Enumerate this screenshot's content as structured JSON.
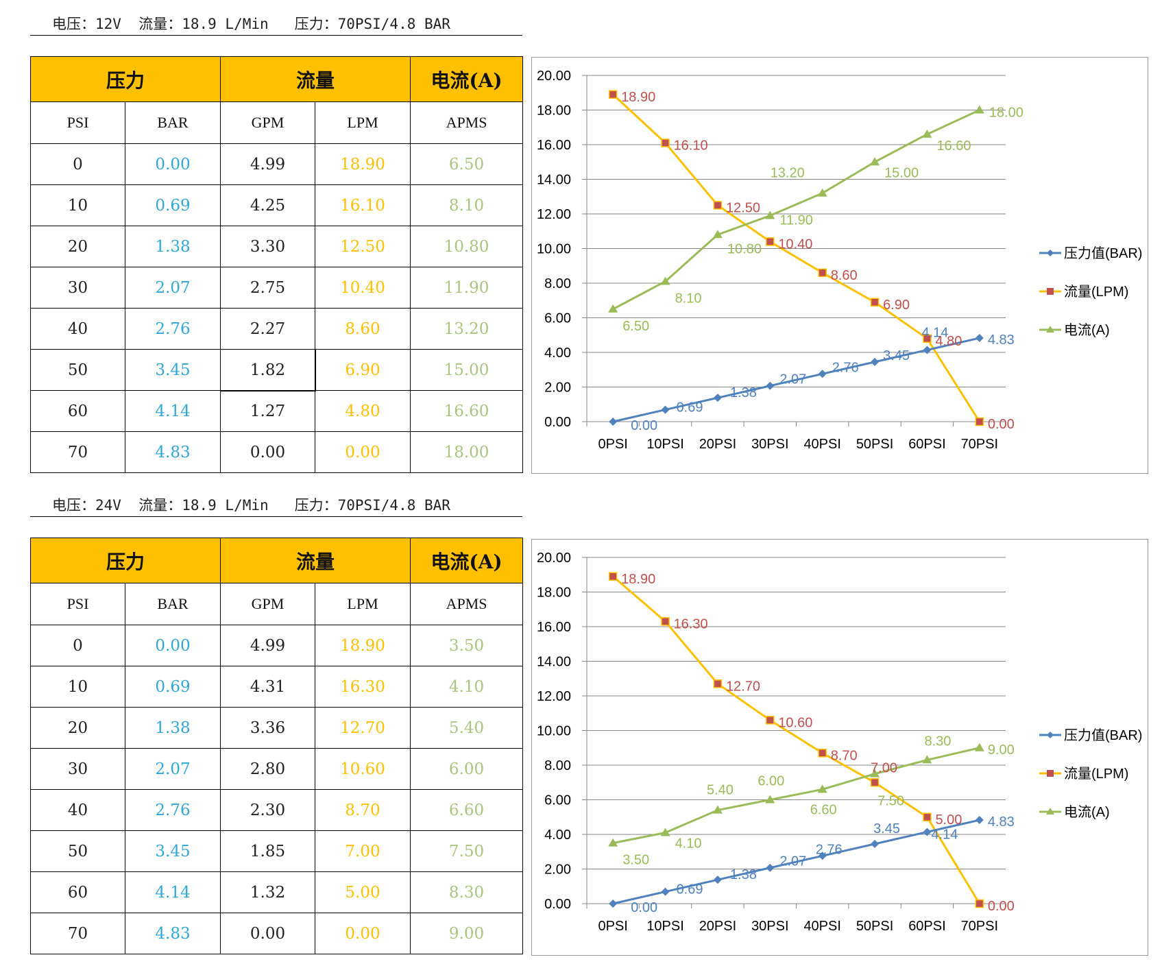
{
  "sections": [
    {
      "spec": "电压：12V  流量：18.9 L/Min   压力：70PSI/4.8 BAR",
      "table": {
        "group_headers": [
          "压力",
          "流量",
          "电流(A)"
        ],
        "sub_headers": [
          "PSI",
          "BAR",
          "GPM",
          "LPM",
          "APMS"
        ],
        "rows": [
          [
            "0",
            "0.00",
            "4.99",
            "18.90",
            "6.50"
          ],
          [
            "10",
            "0.69",
            "4.25",
            "16.10",
            "8.10"
          ],
          [
            "20",
            "1.38",
            "3.30",
            "12.50",
            "10.80"
          ],
          [
            "30",
            "2.07",
            "2.75",
            "10.40",
            "11.90"
          ],
          [
            "40",
            "2.76",
            "2.27",
            "8.60",
            "13.20"
          ],
          [
            "50",
            "3.45",
            "1.82",
            "6.90",
            "15.00"
          ],
          [
            "60",
            "4.14",
            "1.27",
            "4.80",
            "16.60"
          ],
          [
            "70",
            "4.83",
            "0.00",
            "0.00",
            "18.00"
          ]
        ]
      }
    },
    {
      "spec": "电压：24V  流量：18.9 L/Min   压力：70PSI/4.8 BAR",
      "table": {
        "group_headers": [
          "压力",
          "流量",
          "电流(A)"
        ],
        "sub_headers": [
          "PSI",
          "BAR",
          "GPM",
          "LPM",
          "APMS"
        ],
        "rows": [
          [
            "0",
            "0.00",
            "4.99",
            "18.90",
            "3.50"
          ],
          [
            "10",
            "0.69",
            "4.31",
            "16.30",
            "4.10"
          ],
          [
            "20",
            "1.38",
            "3.36",
            "12.70",
            "5.40"
          ],
          [
            "30",
            "2.07",
            "2.80",
            "10.60",
            "6.00"
          ],
          [
            "40",
            "2.76",
            "2.30",
            "8.70",
            "6.60"
          ],
          [
            "50",
            "3.45",
            "1.85",
            "7.00",
            "7.50"
          ],
          [
            "60",
            "4.14",
            "1.32",
            "5.00",
            "8.30"
          ],
          [
            "70",
            "4.83",
            "0.00",
            "0.00",
            "9.00"
          ]
        ]
      }
    }
  ],
  "chart_data": [
    {
      "type": "line",
      "title": "",
      "xlabel": "",
      "ylabel": "",
      "categories": [
        "0PSI",
        "10PSI",
        "20PSI",
        "30PSI",
        "40PSI",
        "50PSI",
        "60PSI",
        "70PSI"
      ],
      "ylim": [
        0,
        20
      ],
      "yticks": [
        "0.00",
        "2.00",
        "4.00",
        "6.00",
        "8.00",
        "10.00",
        "12.00",
        "14.00",
        "16.00",
        "18.00",
        "20.00"
      ],
      "grid": true,
      "legend_position": "right",
      "series": [
        {
          "name": "压力值(BAR)",
          "color": "#4f81bd",
          "label_color": "#4f81bd",
          "marker": "diamond",
          "values": [
            0.0,
            0.69,
            1.38,
            2.07,
            2.76,
            3.45,
            4.14,
            4.83
          ]
        },
        {
          "name": "流量(LPM)",
          "color": "#ffc000",
          "label_color": "#c0504d",
          "marker": "square",
          "marker_color": "#c0504d",
          "values": [
            18.9,
            16.1,
            12.5,
            10.4,
            8.6,
            6.9,
            4.8,
            0.0
          ]
        },
        {
          "name": "电流(A)",
          "color": "#9bbb59",
          "label_color": "#9bbb59",
          "marker": "triangle",
          "values": [
            6.5,
            8.1,
            10.8,
            11.9,
            13.2,
            15.0,
            16.6,
            18.0
          ]
        }
      ]
    },
    {
      "type": "line",
      "title": "",
      "xlabel": "",
      "ylabel": "",
      "categories": [
        "0PSI",
        "10PSI",
        "20PSI",
        "30PSI",
        "40PSI",
        "50PSI",
        "60PSI",
        "70PSI"
      ],
      "ylim": [
        0,
        20
      ],
      "yticks": [
        "0.00",
        "2.00",
        "4.00",
        "6.00",
        "8.00",
        "10.00",
        "12.00",
        "14.00",
        "16.00",
        "18.00",
        "20.00"
      ],
      "grid": true,
      "legend_position": "right",
      "series": [
        {
          "name": "压力值(BAR)",
          "color": "#4f81bd",
          "label_color": "#4f81bd",
          "marker": "diamond",
          "values": [
            0.0,
            0.69,
            1.38,
            2.07,
            2.76,
            3.45,
            4.14,
            4.83
          ]
        },
        {
          "name": "流量(LPM)",
          "color": "#ffc000",
          "label_color": "#c0504d",
          "marker": "square",
          "marker_color": "#c0504d",
          "values": [
            18.9,
            16.3,
            12.7,
            10.6,
            8.7,
            7.0,
            5.0,
            0.0
          ]
        },
        {
          "name": "电流(A)",
          "color": "#9bbb59",
          "label_color": "#9bbb59",
          "marker": "triangle",
          "values": [
            3.5,
            4.1,
            5.4,
            6.0,
            6.6,
            7.5,
            8.3,
            9.0
          ]
        }
      ]
    }
  ]
}
